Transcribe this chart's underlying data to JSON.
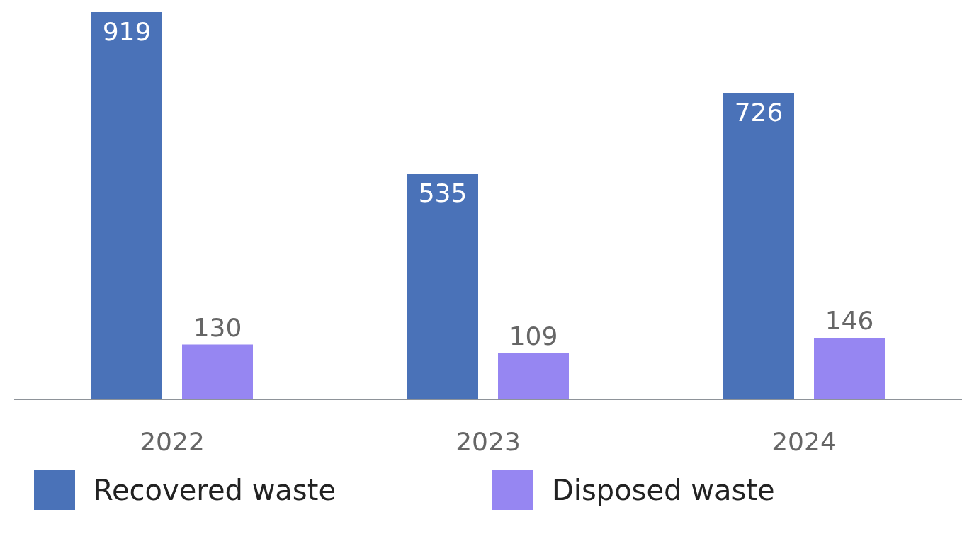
{
  "chart_data": {
    "type": "bar",
    "categories": [
      "2022",
      "2023",
      "2024"
    ],
    "series": [
      {
        "name": "Recovered waste",
        "color": "#4a72b8",
        "values": [
          919,
          535,
          726
        ]
      },
      {
        "name": "Disposed waste",
        "color": "#9686f2",
        "values": [
          130,
          109,
          146
        ]
      }
    ],
    "data_labels": true,
    "tick_labels": "x",
    "legend": "bottom",
    "grid": false
  }
}
